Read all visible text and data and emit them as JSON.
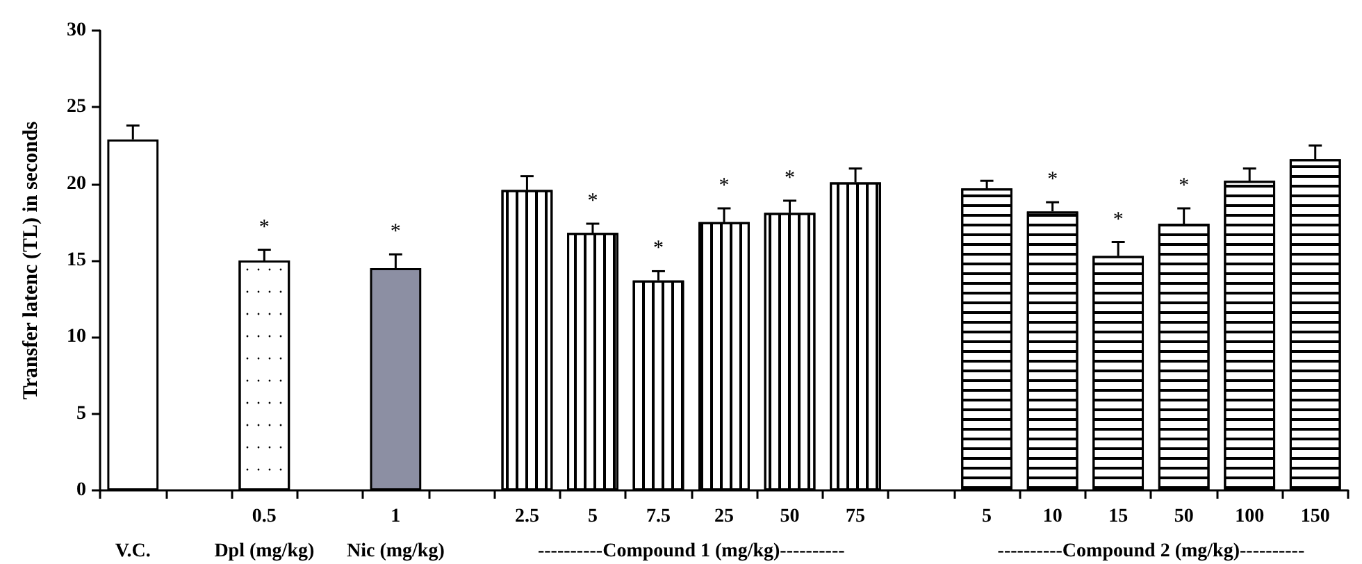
{
  "chart_data": {
    "type": "bar",
    "ylabel": "Transfer latenc (TL) in seconds",
    "categories": [
      null,
      null,
      "0.5",
      null,
      "1",
      null,
      "2.5",
      "5",
      "7.5",
      "25",
      "50",
      "75",
      null,
      "5",
      "10",
      "15",
      "50",
      "100",
      "150"
    ],
    "values": [
      22.9,
      null,
      15.0,
      null,
      14.5,
      null,
      19.6,
      16.8,
      13.7,
      17.5,
      18.1,
      20.1,
      null,
      19.7,
      18.2,
      15.3,
      17.4,
      20.2,
      21.6
    ],
    "errors": [
      0.9,
      null,
      0.7,
      null,
      0.9,
      null,
      0.9,
      0.6,
      0.6,
      0.9,
      0.8,
      0.9,
      null,
      0.5,
      0.6,
      0.9,
      1.0,
      0.8,
      0.9
    ],
    "value_labels": [
      null,
      null,
      "*",
      null,
      "*",
      null,
      null,
      "*",
      "*",
      "*",
      "*",
      null,
      null,
      null,
      "*",
      "*",
      "*",
      null,
      null
    ],
    "colors": [
      "#ffffff",
      null,
      "#ffffff",
      null,
      "#8c8fa3",
      null,
      "#ffffff",
      "#ffffff",
      "#ffffff",
      "#ffffff",
      "#ffffff",
      "#ffffff",
      null,
      "#ffffff",
      "#ffffff",
      "#ffffff",
      "#ffffff",
      "#ffffff",
      "#ffffff"
    ],
    "ylim": [
      0,
      30
    ],
    "yticks": [
      0,
      5,
      10,
      15,
      20,
      25,
      30
    ],
    "grid": false,
    "annotations": [
      "V.C.",
      "Dpl (mg/kg)",
      "Nic (mg/kg)",
      "----------Compound 1 (mg/kg)----------",
      "----------Compound 2 (mg/kg)----------"
    ]
  }
}
